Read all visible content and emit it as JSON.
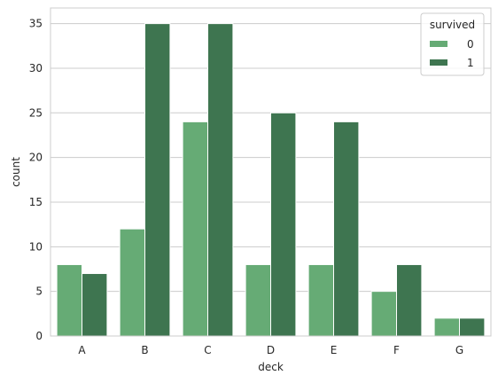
{
  "chart_data": {
    "type": "bar",
    "xlabel": "deck",
    "ylabel": "count",
    "categories": [
      "A",
      "B",
      "C",
      "D",
      "E",
      "F",
      "G"
    ],
    "series": [
      {
        "name": "0",
        "values": [
          8,
          12,
          24,
          8,
          8,
          5,
          2
        ]
      },
      {
        "name": "1",
        "values": [
          7,
          35,
          35,
          25,
          24,
          8,
          2
        ]
      }
    ],
    "ylim": [
      0,
      36.75
    ],
    "yticks": [
      0,
      5,
      10,
      15,
      20,
      25,
      30,
      35
    ],
    "grid": true,
    "legend": {
      "title": "survived",
      "placement": "top-right"
    },
    "colors": {
      "0": "#66ab75",
      "1": "#3e7550"
    }
  }
}
